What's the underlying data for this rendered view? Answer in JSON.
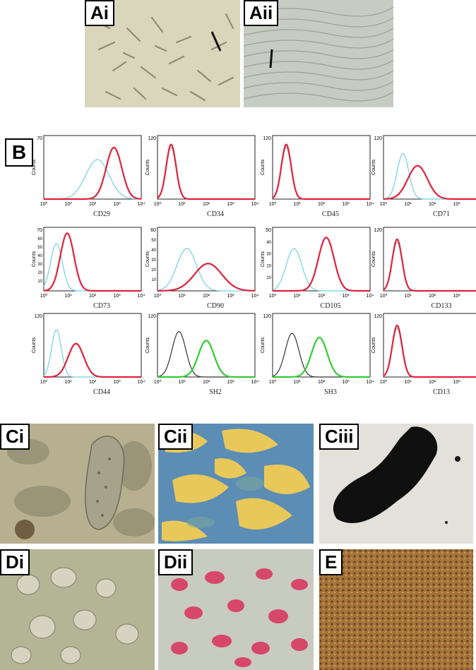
{
  "panels": {
    "Ai": "Ai",
    "Aii": "Aii",
    "B": "B",
    "Ci": "Ci",
    "Cii": "Cii",
    "Ciii": "Ciii",
    "Di": "Di",
    "Dii": "Dii",
    "E": "E"
  },
  "histograms": [
    {
      "label": "CD29",
      "ymax": "70",
      "yticks": [],
      "curves": [
        {
          "color": "#6fd0e6",
          "mu": 0.55,
          "sd": 0.12,
          "h": 0.65
        },
        {
          "color": "#e0223a",
          "mu": 0.72,
          "sd": 0.08,
          "h": 0.85
        }
      ]
    },
    {
      "label": "CD34",
      "ymax": "120",
      "yticks": [],
      "curves": [
        {
          "color": "#6fd0e6",
          "mu": 0.14,
          "sd": 0.05,
          "h": 0.85
        },
        {
          "color": "#e0223a",
          "mu": 0.14,
          "sd": 0.05,
          "h": 0.9
        }
      ]
    },
    {
      "label": "CD45",
      "ymax": "120",
      "yticks": [],
      "curves": [
        {
          "color": "#6fd0e6",
          "mu": 0.14,
          "sd": 0.05,
          "h": 0.85
        },
        {
          "color": "#e0223a",
          "mu": 0.14,
          "sd": 0.05,
          "h": 0.9
        }
      ]
    },
    {
      "label": "CD71",
      "ymax": "120",
      "yticks": [],
      "curves": [
        {
          "color": "#6fd0e6",
          "mu": 0.2,
          "sd": 0.06,
          "h": 0.75
        },
        {
          "color": "#e0223a",
          "mu": 0.35,
          "sd": 0.1,
          "h": 0.55
        }
      ]
    },
    {
      "label": "CD73",
      "ymax": "70",
      "yticks": [
        "60",
        "50",
        "40",
        "30",
        "20",
        "10"
      ],
      "curves": [
        {
          "color": "#6fd0e6",
          "mu": 0.13,
          "sd": 0.06,
          "h": 0.78
        },
        {
          "color": "#e0223a",
          "mu": 0.24,
          "sd": 0.07,
          "h": 0.95
        }
      ]
    },
    {
      "label": "CD90",
      "ymax": "60",
      "yticks": [
        "50",
        "40",
        "30",
        "20",
        "10"
      ],
      "curves": [
        {
          "color": "#6fd0e6",
          "mu": 0.3,
          "sd": 0.1,
          "h": 0.7
        },
        {
          "color": "#e0223a",
          "mu": 0.52,
          "sd": 0.14,
          "h": 0.45
        }
      ]
    },
    {
      "label": "CD105",
      "ymax": "50",
      "yticks": [
        "40",
        "30",
        "20",
        "10"
      ],
      "curves": [
        {
          "color": "#6fd0e6",
          "mu": 0.22,
          "sd": 0.08,
          "h": 0.7
        },
        {
          "color": "#e0223a",
          "mu": 0.55,
          "sd": 0.08,
          "h": 0.88
        }
      ]
    },
    {
      "label": "CD133",
      "ymax": "120",
      "yticks": [],
      "curves": [
        {
          "color": "#6fd0e6",
          "mu": 0.14,
          "sd": 0.05,
          "h": 0.8
        },
        {
          "color": "#e0223a",
          "mu": 0.14,
          "sd": 0.05,
          "h": 0.85
        }
      ]
    },
    {
      "label": "CD44",
      "ymax": "120",
      "yticks": [],
      "curves": [
        {
          "color": "#6fd0e6",
          "mu": 0.13,
          "sd": 0.05,
          "h": 0.78
        },
        {
          "color": "#e0223a",
          "mu": 0.33,
          "sd": 0.08,
          "h": 0.55
        }
      ]
    },
    {
      "label": "SH2",
      "ymax": "120",
      "yticks": [],
      "curves": [
        {
          "color": "#333333",
          "mu": 0.22,
          "sd": 0.07,
          "h": 0.75
        },
        {
          "color": "#33cc33",
          "mu": 0.5,
          "sd": 0.08,
          "h": 0.6
        }
      ]
    },
    {
      "label": "SH3",
      "ymax": "120",
      "yticks": [],
      "curves": [
        {
          "color": "#333333",
          "mu": 0.2,
          "sd": 0.07,
          "h": 0.72
        },
        {
          "color": "#33cc33",
          "mu": 0.48,
          "sd": 0.08,
          "h": 0.65
        }
      ]
    },
    {
      "label": "CD13",
      "ymax": "120",
      "yticks": [],
      "curves": [
        {
          "color": "#6fd0e6",
          "mu": 0.14,
          "sd": 0.05,
          "h": 0.8
        },
        {
          "color": "#e0223a",
          "mu": 0.14,
          "sd": 0.05,
          "h": 0.85
        }
      ]
    }
  ],
  "axis": {
    "ylabel": "Counts",
    "xticks": [
      "10⁰",
      "10¹",
      "10²",
      "10³",
      "10⁴"
    ]
  },
  "colors": {
    "phase_contrast": "#d7d5b8",
    "dense_culture": "#c8cfc4",
    "alcian": "#5b8db5",
    "safranin": "#e9c85a",
    "von_kossa": "#101010",
    "oil_red": "#d9305a",
    "immunostain": "#9a6a2a"
  }
}
